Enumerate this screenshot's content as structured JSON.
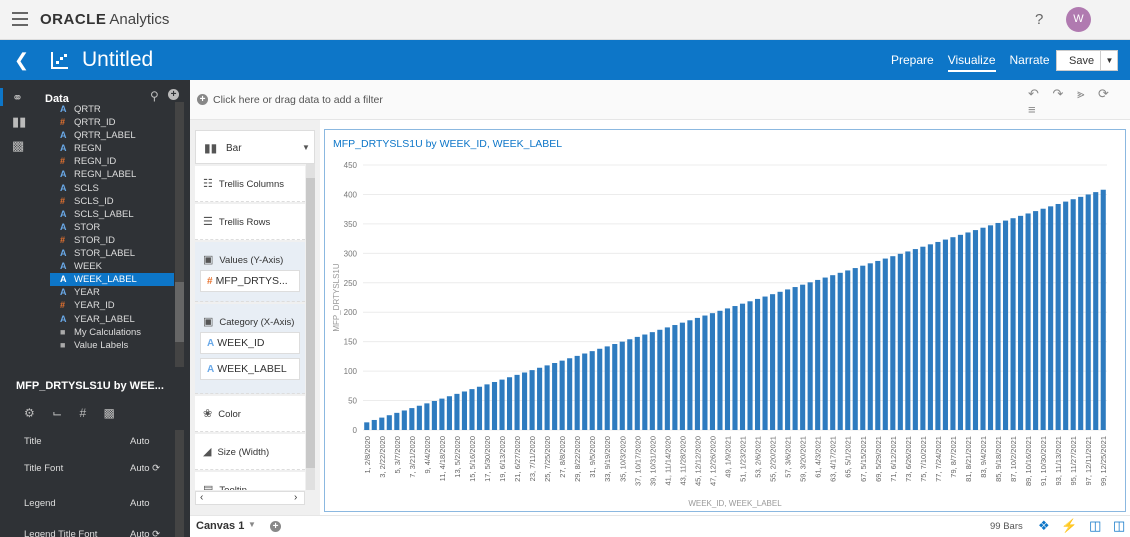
{
  "app": {
    "brand_name": "ORACLE",
    "brand_suffix": "Analytics",
    "help": "?",
    "user_initial": "W"
  },
  "workbook": {
    "title": "Untitled"
  },
  "nav": {
    "tabs": [
      "Prepare",
      "Visualize",
      "Narrate"
    ],
    "active": "Visualize",
    "save_label": "Save"
  },
  "data_panel": {
    "title": "Data",
    "fields": [
      {
        "type": "attribute",
        "label": "QRTR"
      },
      {
        "type": "measure",
        "label": "QRTR_ID"
      },
      {
        "type": "attribute",
        "label": "QRTR_LABEL"
      },
      {
        "type": "attribute",
        "label": "REGN"
      },
      {
        "type": "measure",
        "label": "REGN_ID"
      },
      {
        "type": "attribute",
        "label": "REGN_LABEL"
      },
      {
        "type": "attribute",
        "label": "SCLS"
      },
      {
        "type": "measure",
        "label": "SCLS_ID"
      },
      {
        "type": "attribute",
        "label": "SCLS_LABEL"
      },
      {
        "type": "attribute",
        "label": "STOR"
      },
      {
        "type": "measure",
        "label": "STOR_ID"
      },
      {
        "type": "attribute",
        "label": "STOR_LABEL"
      },
      {
        "type": "attribute",
        "label": "WEEK"
      },
      {
        "type": "attribute",
        "label": "WEEK_LABEL",
        "selected": true
      },
      {
        "type": "attribute",
        "label": "YEAR"
      },
      {
        "type": "measure",
        "label": "YEAR_ID"
      },
      {
        "type": "attribute",
        "label": "YEAR_LABEL"
      }
    ],
    "extra": [
      {
        "type": "folder",
        "label": "My Calculations"
      },
      {
        "type": "folder",
        "label": "Value Labels"
      }
    ]
  },
  "properties": {
    "title": "MFP_DRTYSLS1U by WEE...",
    "rows": [
      {
        "key": "Title",
        "value": "Auto"
      },
      {
        "key": "Title Font",
        "value": "Auto"
      },
      {
        "key": "Legend",
        "value": "Auto"
      },
      {
        "key": "Legend Title Font",
        "value": "Auto"
      }
    ]
  },
  "filter_bar": {
    "placeholder": "Click here or drag data to add a filter"
  },
  "grammar": {
    "chart_type": "Bar",
    "sections": [
      {
        "label": "Trellis Columns",
        "pills": []
      },
      {
        "label": "Trellis Rows",
        "pills": []
      },
      {
        "label": "Values (Y-Axis)",
        "pills": [
          "MFP_DRTYS..."
        ]
      },
      {
        "label": "Category (X-Axis)",
        "pills": [
          "WEEK_ID",
          "WEEK_LABEL"
        ]
      },
      {
        "label": "Color",
        "pills": []
      },
      {
        "label": "Size (Width)",
        "pills": []
      },
      {
        "label": "Tooltip",
        "pills": []
      }
    ]
  },
  "canvas": {
    "tab": "Canvas 1",
    "bar_count": "99 Bars"
  },
  "chart_data": {
    "type": "bar",
    "title": "MFP_DRTYSLS1U by WEEK_ID, WEEK_LABEL",
    "xlabel": "WEEK_ID, WEEK_LABEL",
    "ylabel": "MFP_DRTYSLS1U",
    "ylim": [
      0,
      450
    ],
    "yticks": [
      0,
      50,
      100,
      150,
      200,
      250,
      300,
      350,
      400,
      450
    ],
    "grid": true,
    "color": "#2e7bbf",
    "n_bars": 99,
    "value_start": 13,
    "value_end": 408,
    "tick_labels": [
      "1, 2/8/2020",
      "3, 2/22/2020",
      "5, 3/7/2020",
      "7, 3/21/2020",
      "9, 4/4/2020",
      "11, 4/18/2020",
      "13, 5/2/2020",
      "15, 5/16/2020",
      "17, 5/30/2020",
      "19, 6/13/2020",
      "21, 6/27/2020",
      "23, 7/11/2020",
      "25, 7/25/2020",
      "27, 8/8/2020",
      "29, 8/22/2020",
      "31, 9/5/2020",
      "33, 9/19/2020",
      "35, 10/3/2020",
      "37, 10/17/2020",
      "39, 10/31/2020",
      "41, 11/14/2020",
      "43, 11/28/2020",
      "45, 12/12/2020",
      "47, 12/26/2020",
      "49, 1/9/2021",
      "51, 1/23/2021",
      "53, 2/6/2021",
      "55, 2/20/2021",
      "57, 3/6/2021",
      "59, 3/20/2021",
      "61, 4/3/2021",
      "63, 4/17/2021",
      "65, 5/1/2021",
      "67, 5/15/2021",
      "69, 5/29/2021",
      "71, 6/12/2021",
      "73, 6/26/2021",
      "75, 7/10/2021",
      "77, 7/24/2021",
      "79, 8/7/2021",
      "81, 8/21/2021",
      "83, 9/4/2021",
      "85, 9/18/2021",
      "87, 10/2/2021",
      "89, 10/16/2021",
      "91, 10/30/2021",
      "93, 11/13/2021",
      "95, 11/27/2021",
      "97, 12/11/2021",
      "99, 12/25/2021"
    ]
  }
}
